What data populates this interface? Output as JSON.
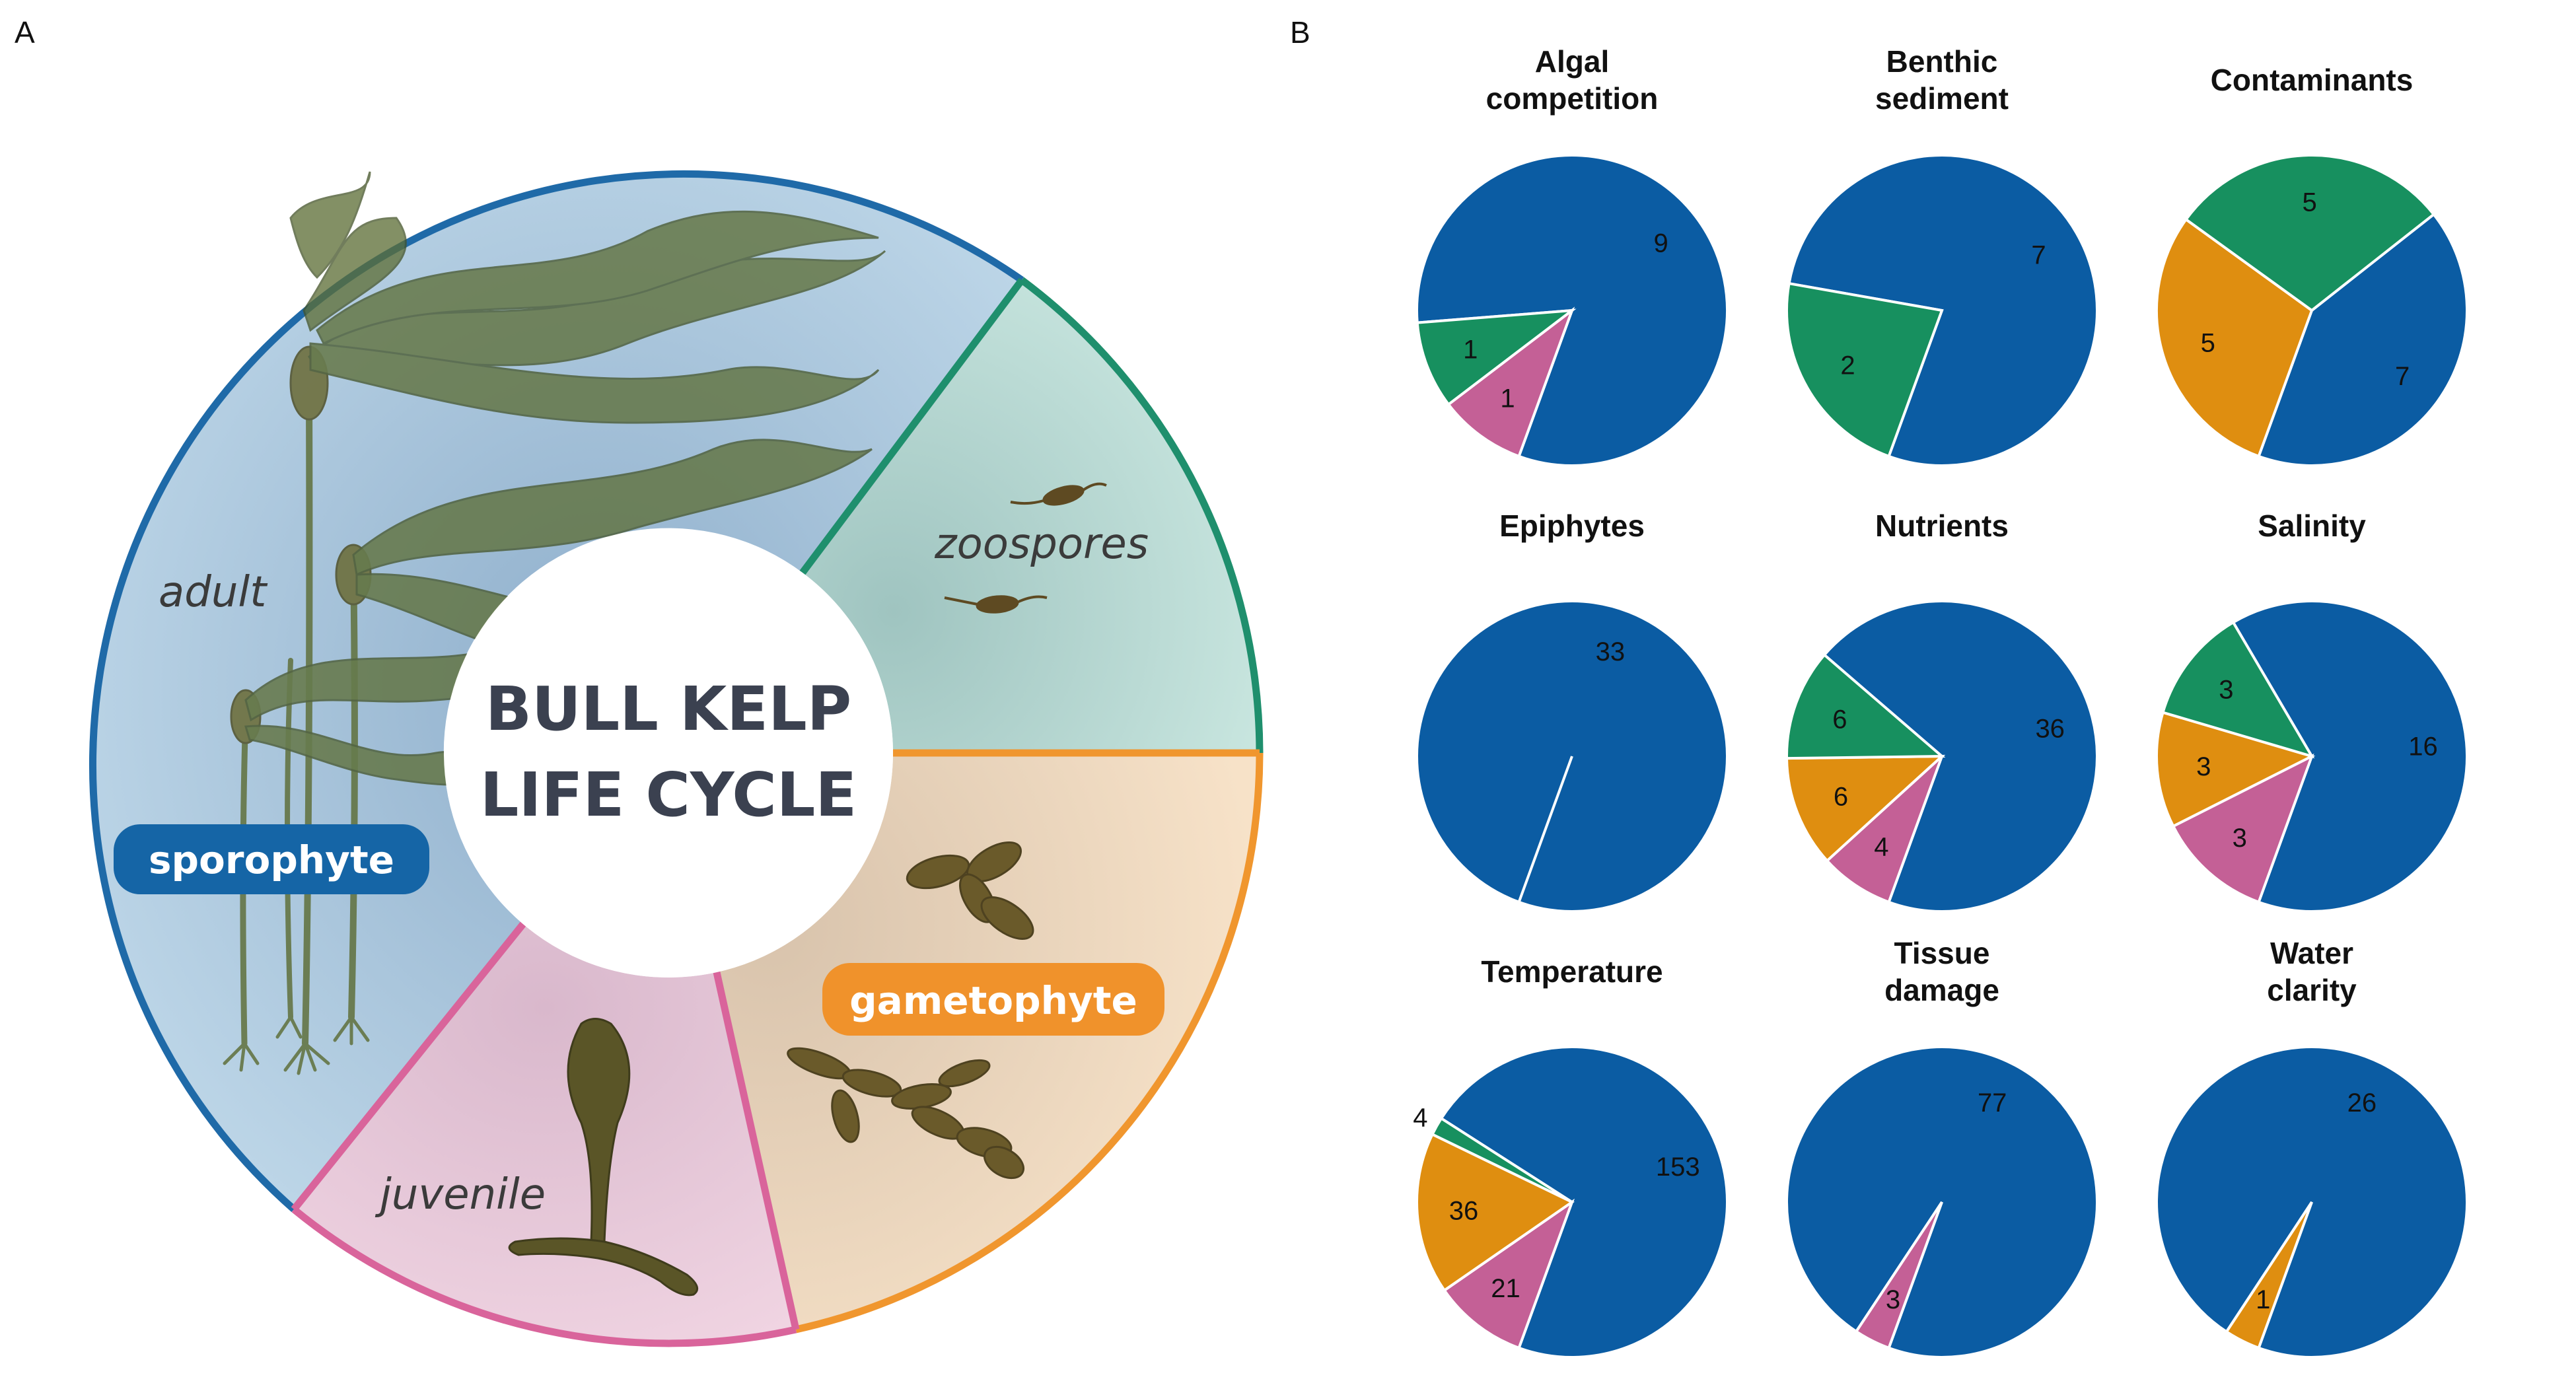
{
  "panel_labels": {
    "a": "A",
    "b": "B"
  },
  "life_cycle": {
    "center_title": [
      "BULL KELP",
      "LIFE CYCLE"
    ],
    "stages": {
      "adult": "adult",
      "zoospores": "zoospores",
      "juvenile": "juvenile",
      "sporophyte": "sporophyte",
      "gametophyte": "gametophyte"
    },
    "colors": {
      "sporophyte_fill": "#b9d3e6",
      "sporophyte_border": "#1f6aa8",
      "zoospores_fill": "#bfe1da",
      "zoospores_border": "#1f8f6d",
      "gametophyte_fill": "#f3dcc0",
      "gametophyte_border": "#f0962e",
      "juvenile_fill": "#ecccdc",
      "juvenile_border": "#d9649b",
      "sporophyte_pill": "#1565a6",
      "gametophyte_pill": "#f0922b",
      "kelp": "#5a6b38"
    },
    "icons": [
      "kelp-adult-illustration",
      "zoospore-icon",
      "gametophyte-filament-icon",
      "juvenile-kelp-icon"
    ]
  },
  "chart_data": [
    {
      "type": "pie",
      "title": "Algal competition",
      "values": [
        9,
        1,
        1
      ],
      "colors": [
        "#0b5ca3",
        "#c46096",
        "#17905f"
      ]
    },
    {
      "type": "pie",
      "title": "Benthic sediment",
      "values": [
        7,
        2
      ],
      "colors": [
        "#0b5ca3",
        "#17905f"
      ]
    },
    {
      "type": "pie",
      "title": "Contaminants",
      "values": [
        7,
        5,
        5
      ],
      "colors": [
        "#0b5ca3",
        "#df8e10",
        "#17905f"
      ]
    },
    {
      "type": "pie",
      "title": "Epiphytes",
      "values": [
        33
      ],
      "colors": [
        "#0b5ca3"
      ]
    },
    {
      "type": "pie",
      "title": "Nutrients",
      "values": [
        36,
        4,
        6,
        6
      ],
      "colors": [
        "#0b5ca3",
        "#c46096",
        "#df8e10",
        "#17905f"
      ]
    },
    {
      "type": "pie",
      "title": "Salinity",
      "values": [
        16,
        3,
        3,
        3
      ],
      "colors": [
        "#0b5ca3",
        "#c46096",
        "#df8e10",
        "#17905f"
      ]
    },
    {
      "type": "pie",
      "title": "Temperature",
      "values": [
        153,
        21,
        36,
        4
      ],
      "colors": [
        "#0b5ca3",
        "#c46096",
        "#df8e10",
        "#17905f"
      ]
    },
    {
      "type": "pie",
      "title": "Tissue damage",
      "values": [
        77,
        3
      ],
      "colors": [
        "#0b5ca3",
        "#c46096"
      ]
    },
    {
      "type": "pie",
      "title": "Water clarity",
      "values": [
        26,
        1
      ],
      "colors": [
        "#0b5ca3",
        "#df8e10"
      ]
    }
  ]
}
